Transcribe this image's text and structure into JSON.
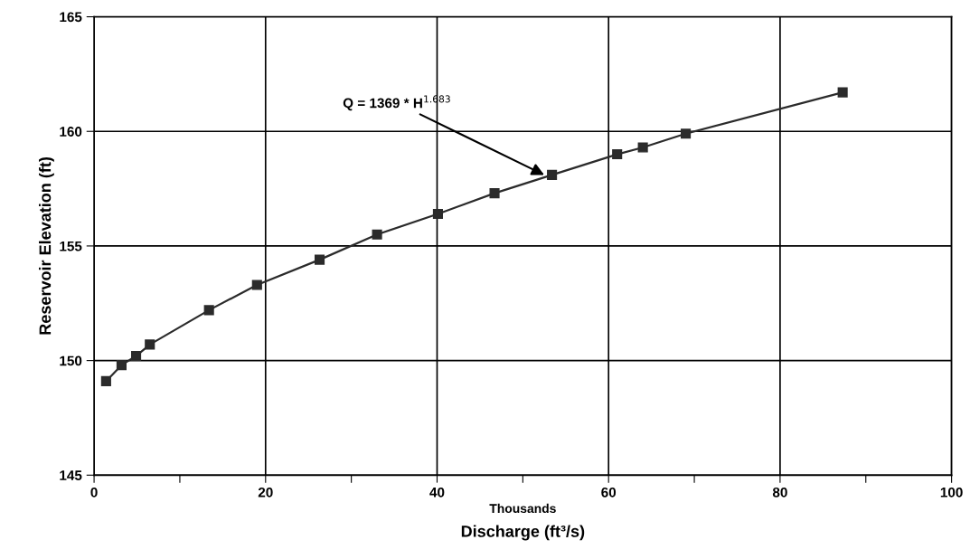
{
  "chart_data": {
    "type": "line",
    "xlabel": "Discharge (ft³/s)",
    "ylabel": "Reservoir Elevation (ft)",
    "x": [
      1.4,
      3.2,
      4.9,
      6.5,
      13.4,
      19.0,
      26.3,
      33.0,
      40.1,
      46.7,
      53.4,
      61.0,
      64.0,
      69.0,
      87.3
    ],
    "series": [
      {
        "color": "#2b2b2b",
        "values": [
          149.1,
          149.8,
          150.2,
          150.7,
          152.2,
          153.3,
          154.4,
          155.5,
          156.4,
          157.3,
          158.1,
          159.0,
          159.3,
          159.9,
          161.7
        ]
      }
    ],
    "xlim": [
      0,
      100
    ],
    "ylim": [
      145,
      165
    ],
    "xticks": [
      0,
      {
        "value": 10,
        "label": null
      },
      20,
      {
        "value": 30,
        "label": null
      },
      40,
      {
        "value": 50,
        "label": null
      },
      60,
      {
        "value": 70,
        "label": null
      },
      80,
      {
        "value": 90,
        "label": null
      },
      100
    ],
    "yticks": [
      145,
      150,
      155,
      160,
      165
    ],
    "annotations": [
      "Thousands",
      {
        "text": "Q = 1369 * H$^{1.683}$",
        "x": 52.5,
        "y": 158.1
      }
    ],
    "grid": true,
    "marker": "square",
    "line_style": "solid",
    "legend": false
  }
}
